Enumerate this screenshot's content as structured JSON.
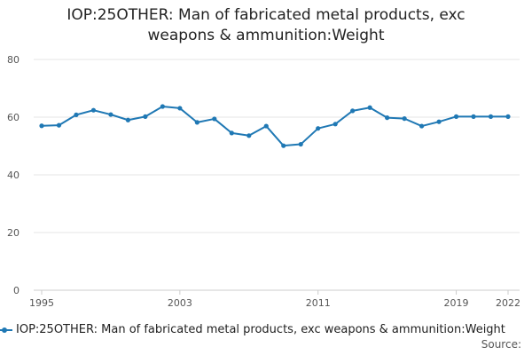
{
  "chart_data": {
    "type": "line",
    "title_lines": [
      "IOP:25OTHER: Man of fabricated metal products, exc",
      "weapons & ammunition:Weight"
    ],
    "xlabel": "",
    "ylabel": "",
    "ylim": [
      0,
      80
    ],
    "y_ticks": [
      0,
      20,
      40,
      60,
      80
    ],
    "x_range": [
      1995,
      2022
    ],
    "x_ticks": [
      1995,
      2003,
      2011,
      2019,
      2022
    ],
    "grid": "horizontal",
    "legend_position": "bottom",
    "series": [
      {
        "name": "IOP:25OTHER: Man of fabricated metal products, exc weapons & ammunition:Weight",
        "color": "#1f78b4",
        "x": [
          1995,
          1996,
          1997,
          1998,
          1999,
          2000,
          2001,
          2002,
          2003,
          2004,
          2005,
          2006,
          2007,
          2008,
          2009,
          2010,
          2011,
          2012,
          2013,
          2014,
          2015,
          2016,
          2017,
          2018,
          2019,
          2020,
          2021,
          2022
        ],
        "values": [
          57.0,
          57.2,
          60.8,
          62.4,
          60.9,
          59.0,
          60.2,
          63.7,
          63.1,
          58.2,
          59.4,
          54.5,
          53.6,
          56.9,
          50.1,
          50.6,
          56.1,
          57.6,
          62.2,
          63.3,
          59.8,
          59.5,
          56.9,
          58.4,
          60.2,
          60.2,
          60.2,
          60.2
        ]
      }
    ]
  },
  "legend": {
    "label": "IOP:25OTHER: Man of fabricated metal products, exc weapons & ammunition:Weight"
  },
  "footer": {
    "source_label": "Source:"
  }
}
